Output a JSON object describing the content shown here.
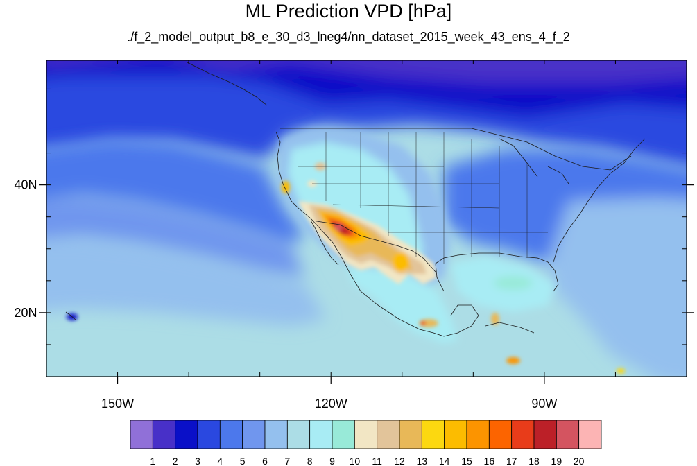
{
  "figure": {
    "title": "ML Prediction VPD [hPa]",
    "subtitle": "./f_2_model_output_b8_e_30_d3_lneg4/nn_dataset_2015_week_43_ens_4_f_2"
  },
  "map": {
    "lon_range": [
      -160,
      -70
    ],
    "lat_range": [
      10,
      59.5
    ],
    "lon_ticks": [
      {
        "value": -150,
        "label": "150W"
      },
      {
        "value": -120,
        "label": "120W"
      },
      {
        "value": -90,
        "label": "90W"
      }
    ],
    "lat_ticks": [
      {
        "value": 40,
        "label": "40N"
      },
      {
        "value": 20,
        "label": "20N"
      }
    ]
  },
  "colorbar": {
    "colors": [
      "#9070d8",
      "#4830c8",
      "#0a10c8",
      "#2a48e0",
      "#4c78ec",
      "#7096ee",
      "#94c0ee",
      "#acdde6",
      "#a8ecf4",
      "#98ead8",
      "#f2e6c4",
      "#e2c49a",
      "#e8b858",
      "#fcd810",
      "#fcbc00",
      "#fc9400",
      "#fc6400",
      "#e83c1a",
      "#bc2028",
      "#d45460",
      "#fcb4b4"
    ],
    "labels": [
      "1",
      "2",
      "3",
      "4",
      "5",
      "6",
      "7",
      "8",
      "9",
      "10",
      "11",
      "12",
      "13",
      "14",
      "15",
      "16",
      "17",
      "18",
      "19",
      "20"
    ]
  }
}
